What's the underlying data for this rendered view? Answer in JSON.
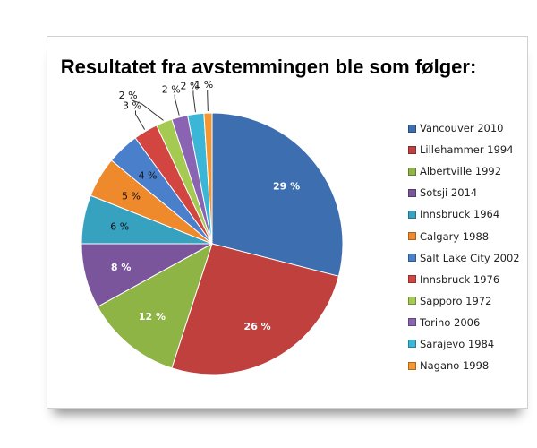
{
  "chart_data": {
    "type": "pie",
    "title": "Resultatet fra avstemmingen ble som følger:",
    "legend_position": "right",
    "categories": [
      "Vancouver 2010",
      "Lillehammer 1994",
      "Albertville 1992",
      "Sotsji 2014",
      "Innsbruck 1964",
      "Calgary 1988",
      "Salt Lake City 2002",
      "Innsbruck 1976",
      "Sapporo 1972",
      "Torino 2006",
      "Sarajevo 1984",
      "Nagano 1998"
    ],
    "values": [
      29,
      26,
      12,
      8,
      6,
      5,
      4,
      3,
      2,
      2,
      2,
      1
    ],
    "labels": [
      "29 %",
      "26 %",
      "12 %",
      "8 %",
      "6 %",
      "5 %",
      "4 %",
      "3 %",
      "2 %",
      "2 %",
      "2 %",
      "1 %"
    ],
    "colors": [
      "#3d6eb0",
      "#c0403d",
      "#8fb446",
      "#7a559c",
      "#36a2bf",
      "#ef8a2c",
      "#4a7fcb",
      "#d24541",
      "#a4ca52",
      "#8a64b3",
      "#3bb6d6",
      "#f5962e"
    ]
  }
}
